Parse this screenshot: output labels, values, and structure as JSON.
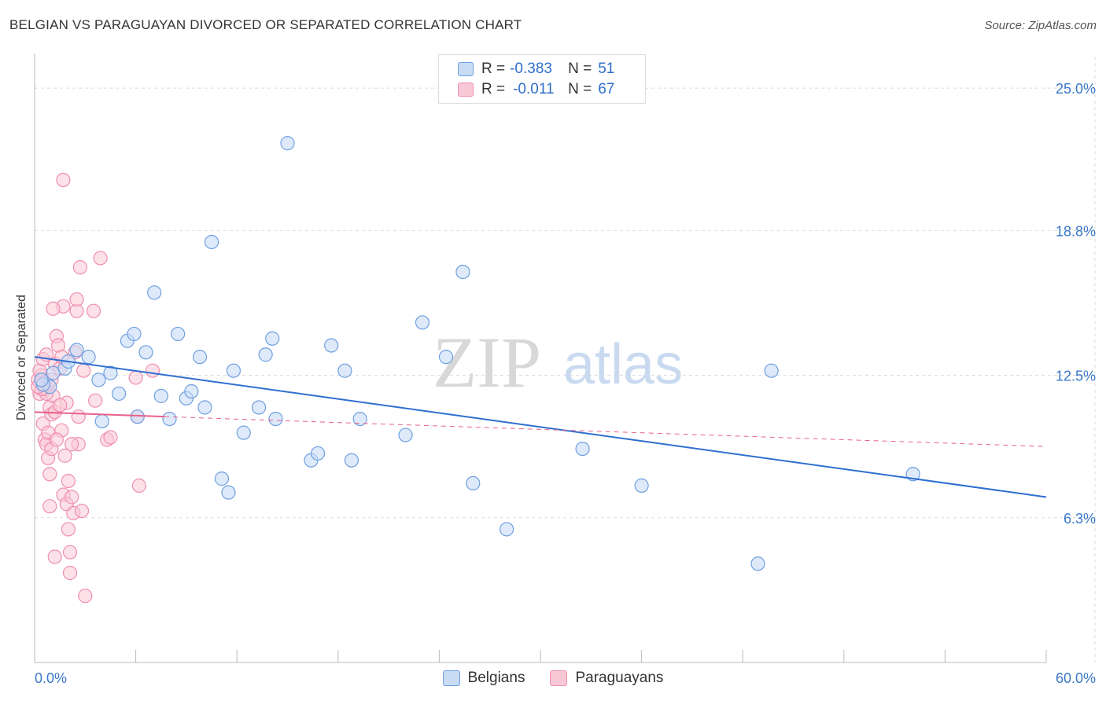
{
  "header": {
    "title": "BELGIAN VS PARAGUAYAN DIVORCED OR SEPARATED CORRELATION CHART",
    "source": "Source: ZipAtlas.com"
  },
  "watermark": {
    "zip": "ZIP",
    "atlas": "atlas"
  },
  "legend": {
    "rows": [
      {
        "r_label": "R =",
        "r_value": "-0.383",
        "n_label": "N =",
        "n_value": "51",
        "color": "#6f9fe0"
      },
      {
        "r_label": "R =",
        "r_value": "-0.011",
        "n_label": "N =",
        "n_value": "67",
        "color": "#f08cab"
      }
    ]
  },
  "bottom_legend": [
    "Belgians",
    "Paraguayans"
  ],
  "colors": {
    "belgian_fill": "#c8dcf6",
    "belgian_stroke": "#6f9fe0",
    "belgian_line": "#2f6fd0",
    "paraguayan_fill": "#f9c8d7",
    "paraguayan_stroke": "#ef8fae",
    "paraguayan_line": "#e8608c",
    "tick_label": "#3a78c9"
  },
  "chart_data": {
    "type": "scatter",
    "title": "BELGIAN VS PARAGUAYAN DIVORCED OR SEPARATED CORRELATION CHART",
    "xlabel": "",
    "ylabel": "Divorced or Separated",
    "xlim": [
      0,
      60
    ],
    "ylim": [
      0,
      26.2
    ],
    "x_tick_labels": [
      "0.0%",
      "60.0%"
    ],
    "y_ticks": [
      6.3,
      12.5,
      18.8,
      25.0
    ],
    "y_tick_labels": [
      "6.3%",
      "12.5%",
      "18.8%",
      "25.0%"
    ],
    "grid": "horizontal dashed",
    "legend_position": "top-center",
    "series": [
      {
        "name": "Belgians",
        "points": [
          [
            0.9,
            12.0
          ],
          [
            1.1,
            12.6
          ],
          [
            1.8,
            12.8
          ],
          [
            2.0,
            13.1
          ],
          [
            2.5,
            13.6
          ],
          [
            3.2,
            13.3
          ],
          [
            3.8,
            12.3
          ],
          [
            4.0,
            10.5
          ],
          [
            4.5,
            12.6
          ],
          [
            5.0,
            11.7
          ],
          [
            5.5,
            14.0
          ],
          [
            5.9,
            14.3
          ],
          [
            6.1,
            10.7
          ],
          [
            6.6,
            13.5
          ],
          [
            7.1,
            16.1
          ],
          [
            7.5,
            11.6
          ],
          [
            8.0,
            10.6
          ],
          [
            8.5,
            14.3
          ],
          [
            9.0,
            11.5
          ],
          [
            9.3,
            11.8
          ],
          [
            9.8,
            13.3
          ],
          [
            10.1,
            11.1
          ],
          [
            10.5,
            18.3
          ],
          [
            11.1,
            8.0
          ],
          [
            11.5,
            7.4
          ],
          [
            11.8,
            12.7
          ],
          [
            12.4,
            10.0
          ],
          [
            13.3,
            11.1
          ],
          [
            13.7,
            13.4
          ],
          [
            14.1,
            14.1
          ],
          [
            14.3,
            10.6
          ],
          [
            15.0,
            22.6
          ],
          [
            16.4,
            8.8
          ],
          [
            16.8,
            9.1
          ],
          [
            17.6,
            13.8
          ],
          [
            18.4,
            12.7
          ],
          [
            18.8,
            8.8
          ],
          [
            19.3,
            10.6
          ],
          [
            22.0,
            9.9
          ],
          [
            23.0,
            14.8
          ],
          [
            24.4,
            13.3
          ],
          [
            25.4,
            17.0
          ],
          [
            26.0,
            7.8
          ],
          [
            28.0,
            5.8
          ],
          [
            32.5,
            9.3
          ],
          [
            36.0,
            7.7
          ],
          [
            42.9,
            4.3
          ],
          [
            43.7,
            12.7
          ],
          [
            52.1,
            8.2
          ],
          [
            0.5,
            12.1
          ],
          [
            0.4,
            12.3
          ]
        ]
      },
      {
        "name": "Paraguayans",
        "points": [
          [
            0.2,
            12.3
          ],
          [
            0.3,
            11.7
          ],
          [
            0.4,
            12.5
          ],
          [
            0.5,
            12.1
          ],
          [
            0.6,
            11.9
          ],
          [
            0.3,
            12.7
          ],
          [
            0.5,
            10.4
          ],
          [
            0.6,
            9.7
          ],
          [
            0.7,
            9.5
          ],
          [
            0.8,
            10.0
          ],
          [
            0.9,
            11.1
          ],
          [
            1.0,
            10.8
          ],
          [
            0.8,
            8.9
          ],
          [
            0.9,
            8.2
          ],
          [
            1.1,
            11.6
          ],
          [
            0.6,
            12.2
          ],
          [
            0.7,
            11.7
          ],
          [
            1.0,
            9.3
          ],
          [
            0.9,
            6.8
          ],
          [
            1.2,
            4.6
          ],
          [
            1.2,
            13.0
          ],
          [
            1.3,
            14.2
          ],
          [
            1.4,
            13.8
          ],
          [
            1.5,
            12.8
          ],
          [
            1.6,
            13.3
          ],
          [
            1.6,
            10.1
          ],
          [
            1.7,
            15.5
          ],
          [
            1.7,
            7.3
          ],
          [
            1.8,
            9.0
          ],
          [
            1.9,
            6.9
          ],
          [
            2.0,
            5.8
          ],
          [
            2.0,
            7.9
          ],
          [
            2.1,
            4.8
          ],
          [
            2.1,
            3.9
          ],
          [
            2.2,
            7.2
          ],
          [
            2.3,
            6.5
          ],
          [
            2.4,
            13.5
          ],
          [
            2.5,
            15.3
          ],
          [
            2.5,
            15.8
          ],
          [
            2.6,
            10.7
          ],
          [
            2.6,
            9.5
          ],
          [
            2.7,
            17.2
          ],
          [
            2.8,
            6.6
          ],
          [
            2.9,
            12.7
          ],
          [
            3.0,
            2.9
          ],
          [
            3.5,
            15.3
          ],
          [
            3.6,
            11.4
          ],
          [
            3.9,
            17.6
          ],
          [
            4.3,
            9.7
          ],
          [
            4.5,
            9.8
          ],
          [
            6.0,
            12.4
          ],
          [
            6.1,
            10.7
          ],
          [
            6.2,
            7.7
          ],
          [
            7.0,
            12.7
          ],
          [
            1.7,
            21.0
          ],
          [
            0.5,
            13.2
          ],
          [
            0.4,
            11.9
          ],
          [
            1.2,
            10.9
          ],
          [
            1.9,
            11.3
          ],
          [
            0.8,
            12.1
          ],
          [
            1.0,
            12.3
          ],
          [
            1.5,
            11.2
          ],
          [
            2.2,
            9.5
          ],
          [
            0.7,
            13.4
          ],
          [
            1.3,
            9.7
          ],
          [
            0.2,
            12.0
          ],
          [
            1.1,
            15.4
          ]
        ]
      }
    ],
    "trend_lines": [
      {
        "name": "Belgians",
        "x": [
          0,
          60
        ],
        "y": [
          13.3,
          7.2
        ],
        "style": "solid"
      },
      {
        "name": "Paraguayans",
        "x": [
          0,
          7.7
        ],
        "y": [
          10.9,
          10.7
        ],
        "style": "solid"
      },
      {
        "name": "Paraguayans",
        "x": [
          7.7,
          60
        ],
        "y": [
          10.7,
          9.4
        ],
        "style": "dashed"
      }
    ]
  }
}
